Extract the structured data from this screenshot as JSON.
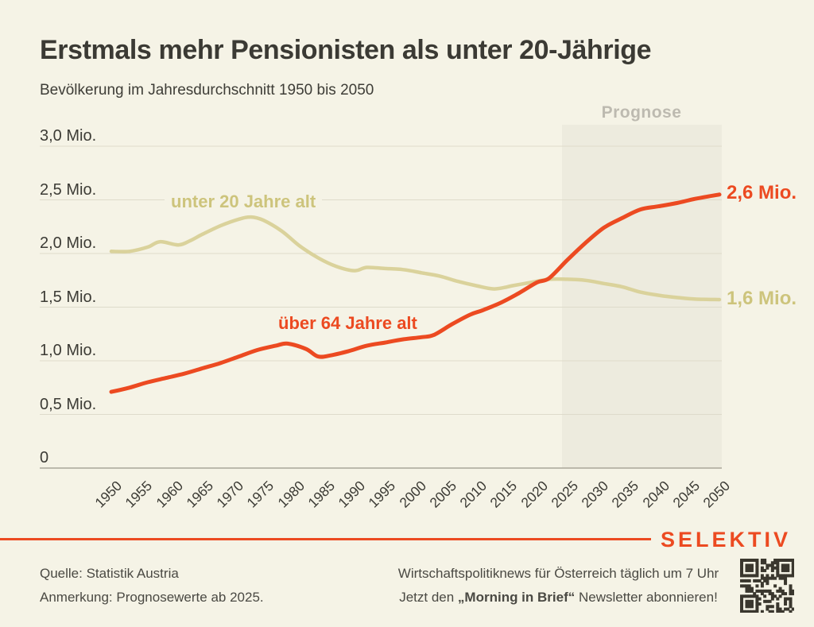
{
  "header": {
    "title": "Erstmals mehr Pensionisten als unter 20-Jährige",
    "subtitle": "Bevölkerung im Jahresdurchschnitt 1950 bis 2050"
  },
  "chart_data": {
    "type": "line",
    "title": "Erstmals mehr Pensionisten als unter 20-Jährige",
    "subtitle": "Bevölkerung im Jahresdurchschnitt 1950 bis 2050",
    "unit": "Mio.",
    "xlim": [
      1950,
      2050
    ],
    "ylim": [
      0,
      3.2
    ],
    "grid": "horizontal",
    "legend_position": "inline-labels",
    "x_ticks": [
      "1950",
      "1955",
      "1960",
      "1965",
      "1970",
      "1975",
      "1980",
      "1985",
      "1990",
      "1995",
      "2000",
      "2005",
      "2010",
      "2015",
      "2020",
      "2025",
      "2030",
      "2035",
      "2040",
      "2045",
      "2050"
    ],
    "y_ticks": [
      {
        "label": "3,0 Mio.",
        "value": 3.0
      },
      {
        "label": "2,5 Mio.",
        "value": 2.5
      },
      {
        "label": "2,0 Mio.",
        "value": 2.0
      },
      {
        "label": "1,5 Mio.",
        "value": 1.5
      },
      {
        "label": "1,0 Mio.",
        "value": 1.0
      },
      {
        "label": "0,5 Mio.",
        "value": 0.5
      },
      {
        "label": "0",
        "value": 0
      }
    ],
    "forecast_band": {
      "label": "Prognose",
      "from_year": 2025,
      "to_year": 2050
    },
    "series": [
      {
        "name": "unter 20 Jahre alt",
        "color": "#DAD29B",
        "label_color": "#CDC47C",
        "end_label": "1,6 Mio.",
        "points": [
          [
            1950,
            2.02
          ],
          [
            1953,
            2.02
          ],
          [
            1956,
            2.06
          ],
          [
            1958,
            2.11
          ],
          [
            1961,
            2.08
          ],
          [
            1963,
            2.12
          ],
          [
            1965,
            2.18
          ],
          [
            1968,
            2.26
          ],
          [
            1971,
            2.32
          ],
          [
            1973,
            2.34
          ],
          [
            1975,
            2.31
          ],
          [
            1978,
            2.21
          ],
          [
            1981,
            2.07
          ],
          [
            1984,
            1.96
          ],
          [
            1987,
            1.88
          ],
          [
            1990,
            1.84
          ],
          [
            1992,
            1.87
          ],
          [
            1995,
            1.86
          ],
          [
            1998,
            1.85
          ],
          [
            2001,
            1.82
          ],
          [
            2004,
            1.79
          ],
          [
            2007,
            1.74
          ],
          [
            2010,
            1.7
          ],
          [
            2013,
            1.67
          ],
          [
            2016,
            1.7
          ],
          [
            2019,
            1.73
          ],
          [
            2022,
            1.76
          ],
          [
            2025,
            1.76
          ],
          [
            2028,
            1.75
          ],
          [
            2031,
            1.72
          ],
          [
            2034,
            1.69
          ],
          [
            2037,
            1.64
          ],
          [
            2040,
            1.61
          ],
          [
            2043,
            1.59
          ],
          [
            2046,
            1.575
          ],
          [
            2050,
            1.57
          ]
        ]
      },
      {
        "name": "über 64 Jahre alt",
        "color": "#EC4A21",
        "label_color": "#EC4A21",
        "end_label": "2,6 Mio.",
        "points": [
          [
            1950,
            0.71
          ],
          [
            1953,
            0.75
          ],
          [
            1956,
            0.8
          ],
          [
            1959,
            0.84
          ],
          [
            1962,
            0.88
          ],
          [
            1965,
            0.93
          ],
          [
            1968,
            0.98
          ],
          [
            1971,
            1.04
          ],
          [
            1974,
            1.1
          ],
          [
            1977,
            1.14
          ],
          [
            1979,
            1.16
          ],
          [
            1982,
            1.11
          ],
          [
            1984,
            1.04
          ],
          [
            1986,
            1.05
          ],
          [
            1989,
            1.09
          ],
          [
            1992,
            1.14
          ],
          [
            1995,
            1.17
          ],
          [
            1998,
            1.2
          ],
          [
            2001,
            1.22
          ],
          [
            2003,
            1.24
          ],
          [
            2006,
            1.34
          ],
          [
            2009,
            1.43
          ],
          [
            2011,
            1.47
          ],
          [
            2014,
            1.54
          ],
          [
            2017,
            1.63
          ],
          [
            2020,
            1.73
          ],
          [
            2022,
            1.77
          ],
          [
            2025,
            1.94
          ],
          [
            2028,
            2.1
          ],
          [
            2031,
            2.24
          ],
          [
            2034,
            2.33
          ],
          [
            2037,
            2.41
          ],
          [
            2040,
            2.44
          ],
          [
            2043,
            2.47
          ],
          [
            2046,
            2.51
          ],
          [
            2050,
            2.55
          ]
        ]
      }
    ]
  },
  "footer": {
    "source": "Quelle: Statistik Austria",
    "note": "Anmerkung: Prognosewerte ab 2025.",
    "brand": "SELEKTIV",
    "tagline_line1": "Wirtschaftspolitiknews für Österreich täglich um 7 Uhr",
    "tagline_line2_prefix": "Jetzt den ",
    "tagline_line2_bold": "„Morning in Brief“",
    "tagline_line2_suffix": " Newsletter abonnieren!",
    "qr_icon": "qr-code"
  },
  "colors": {
    "background": "#F5F3E6",
    "accent_orange": "#EC4A21",
    "series_beige": "#DAD29B",
    "beige_label": "#CDC47C",
    "forecast_band": "#EDEBDE",
    "forecast_label": "#BDBAB0",
    "gridline": "#DEDBCB",
    "zero_axis": "#A9A699",
    "text_dark": "#3C3B35",
    "footer_text": "#4A4943",
    "qr_dark": "#3A372E"
  }
}
